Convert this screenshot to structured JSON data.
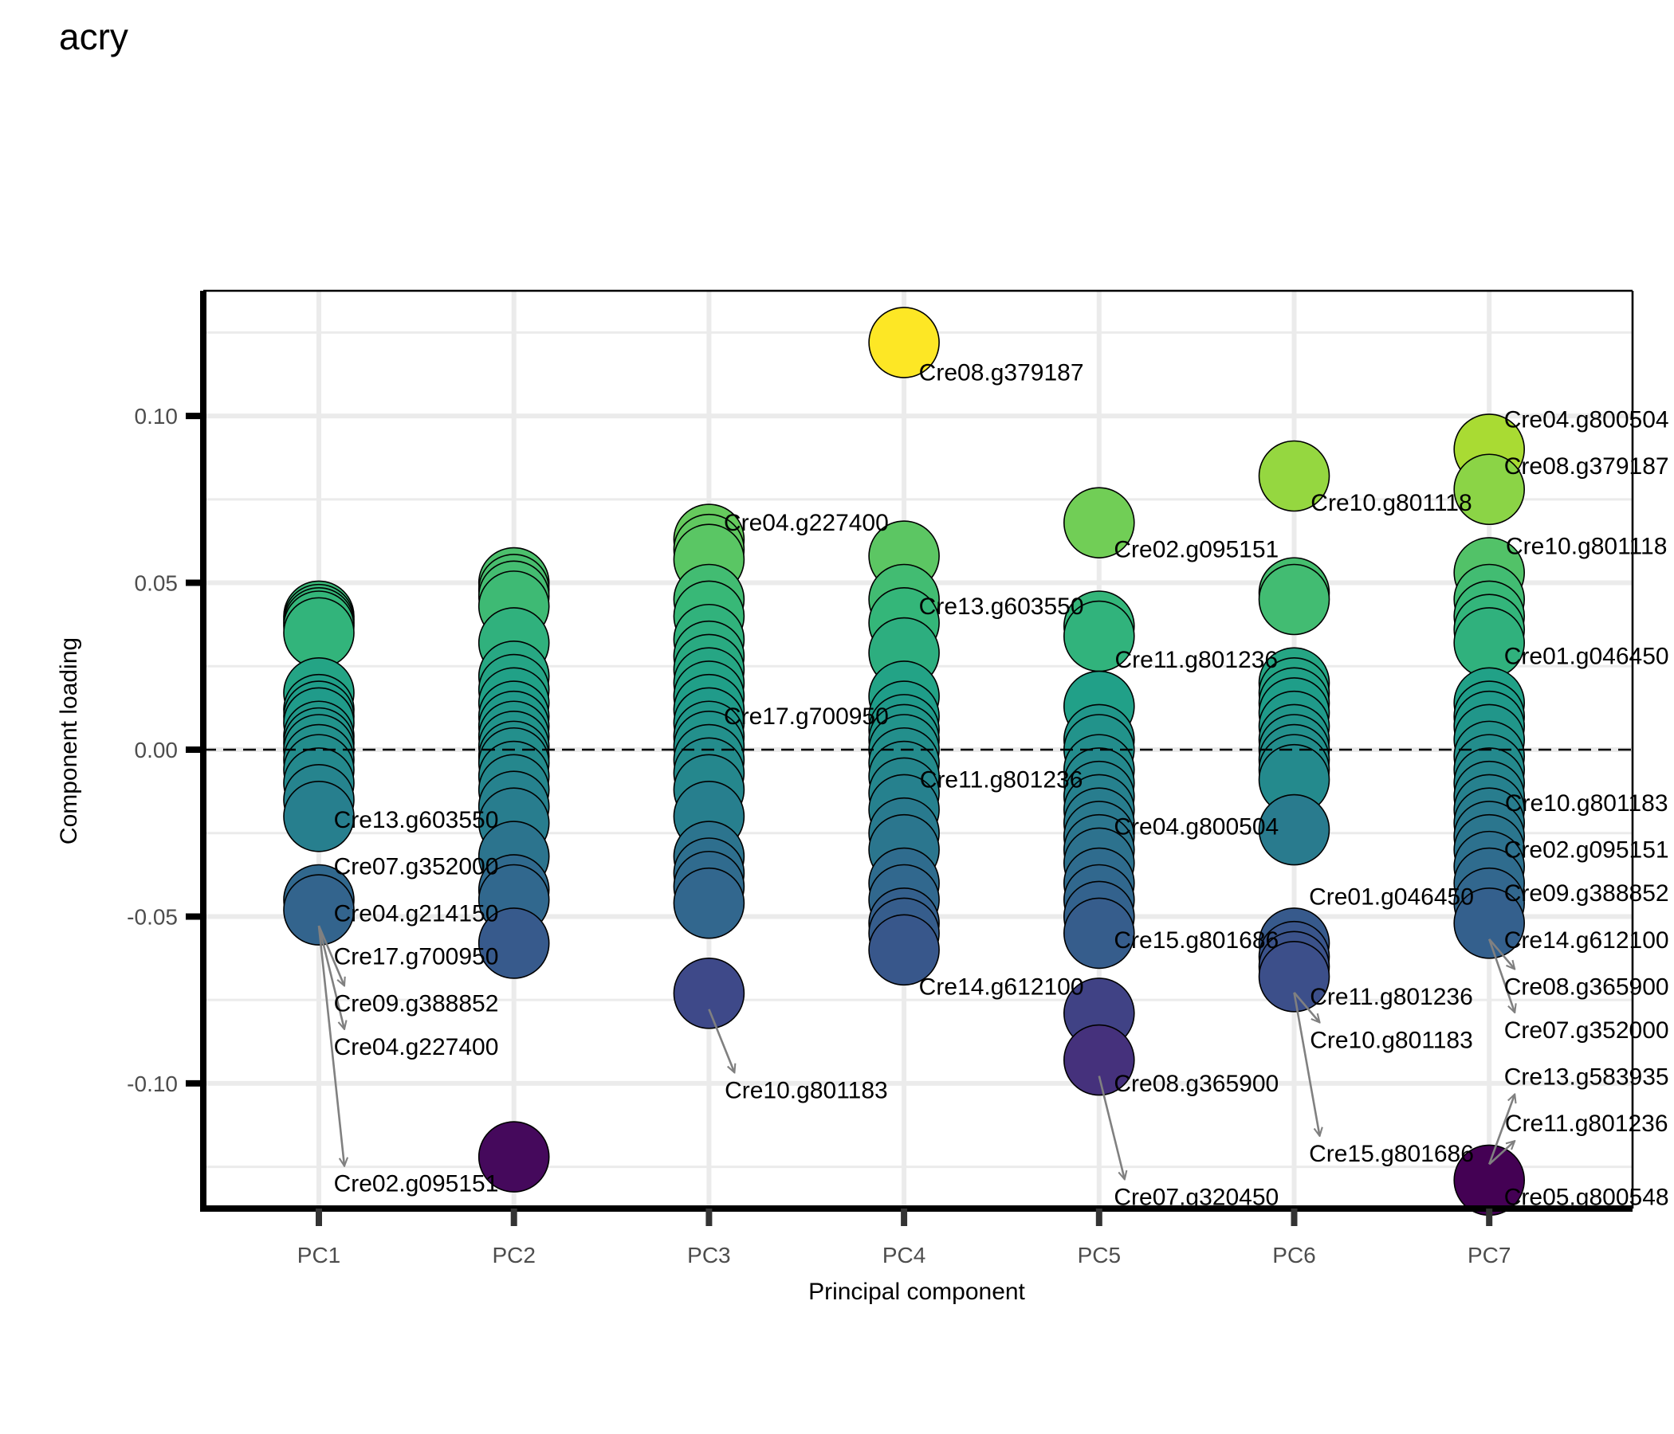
{
  "chart_data": {
    "type": "scatter",
    "title": "acry",
    "xlabel": "Principal component",
    "ylabel": "Component loading",
    "categories": [
      "PC1",
      "PC2",
      "PC3",
      "PC4",
      "PC5",
      "PC6",
      "PC7"
    ],
    "ylim": [
      -0.1375,
      0.1375
    ],
    "yticks": [
      0.1,
      0.05,
      0.0,
      -0.05,
      -0.1
    ],
    "ytick_labels": [
      "0.10",
      "0.05",
      "0.00",
      "-0.05",
      "-0.10"
    ],
    "reference_line": 0,
    "grid": true,
    "color_scale": "viridis",
    "point_fill_min": -0.128,
    "point_fill_max": 0.122,
    "points": {
      "PC1": [
        0.04,
        0.039,
        0.038,
        0.037,
        0.035,
        0.017,
        0.012,
        0.01,
        0.008,
        0.004,
        0.002,
        0.0,
        -0.003,
        -0.006,
        -0.01,
        -0.015,
        -0.02,
        -0.045,
        -0.048
      ],
      "PC2": [
        0.05,
        0.048,
        0.046,
        0.043,
        0.032,
        0.022,
        0.018,
        0.014,
        0.01,
        0.007,
        0.004,
        0.001,
        -0.002,
        -0.004,
        -0.008,
        -0.012,
        -0.017,
        -0.022,
        -0.032,
        -0.042,
        -0.045,
        -0.058,
        -0.122
      ],
      "PC3": [
        0.063,
        0.06,
        0.057,
        0.045,
        0.04,
        0.033,
        0.028,
        0.024,
        0.02,
        0.016,
        0.012,
        0.008,
        0.004,
        0.001,
        -0.003,
        -0.007,
        -0.012,
        -0.02,
        -0.032,
        -0.037,
        -0.041,
        -0.046,
        -0.073
      ],
      "PC4": [
        0.122,
        0.058,
        0.045,
        0.038,
        0.029,
        0.016,
        0.01,
        0.006,
        0.003,
        0.0,
        -0.004,
        -0.008,
        -0.013,
        -0.018,
        -0.025,
        -0.03,
        -0.04,
        -0.045,
        -0.052,
        -0.055,
        -0.06
      ],
      "PC5": [
        0.068,
        0.037,
        0.034,
        0.013,
        0.003,
        0.0,
        -0.006,
        -0.01,
        -0.014,
        -0.018,
        -0.022,
        -0.026,
        -0.03,
        -0.034,
        -0.04,
        -0.045,
        -0.05,
        -0.055,
        -0.079,
        -0.093
      ],
      "PC6": [
        0.082,
        0.047,
        0.045,
        0.02,
        0.017,
        0.014,
        0.011,
        0.007,
        0.003,
        0.0,
        -0.003,
        -0.006,
        -0.009,
        -0.024,
        -0.058,
        -0.062,
        -0.065,
        -0.068
      ],
      "PC7": [
        0.09,
        0.078,
        0.053,
        0.045,
        0.04,
        0.036,
        0.032,
        0.014,
        0.01,
        0.007,
        0.003,
        -0.002,
        -0.006,
        -0.01,
        -0.014,
        -0.018,
        -0.022,
        -0.026,
        -0.03,
        -0.035,
        -0.04,
        -0.046,
        -0.052,
        -0.129
      ]
    },
    "annotations": [
      {
        "pc": "PC1",
        "text": "Cre13.g603550",
        "y": -0.021
      },
      {
        "pc": "PC1",
        "text": "Cre07.g352000",
        "y": -0.035
      },
      {
        "pc": "PC1",
        "text": "Cre04.g214150",
        "y": -0.049
      },
      {
        "pc": "PC1",
        "text": "Cre17.g700950",
        "y": -0.062
      },
      {
        "pc": "PC1",
        "text": "Cre09.g388852",
        "y": -0.076
      },
      {
        "pc": "PC1",
        "text": "Cre04.g227400",
        "y": -0.089
      },
      {
        "pc": "PC1",
        "text": "Cre02.g095151",
        "y": -0.13
      },
      {
        "pc": "PC3",
        "text": "Cre04.g227400",
        "y": 0.068
      },
      {
        "pc": "PC3",
        "text": "Cre17.g700950",
        "y": 0.01
      },
      {
        "pc": "PC3",
        "text": "Cre10.g801183",
        "y": -0.102
      },
      {
        "pc": "PC4",
        "text": "Cre08.g379187",
        "y": 0.113
      },
      {
        "pc": "PC4",
        "text": "Cre13.g603550",
        "y": 0.043
      },
      {
        "pc": "PC4",
        "text": "Cre11.g801236",
        "y": -0.009
      },
      {
        "pc": "PC4",
        "text": "Cre14.g612100",
        "y": -0.071
      },
      {
        "pc": "PC5",
        "text": "Cre02.g095151",
        "y": 0.06
      },
      {
        "pc": "PC5",
        "text": "Cre11.g801236",
        "y": 0.027
      },
      {
        "pc": "PC5",
        "text": "Cre04.g800504",
        "y": -0.023
      },
      {
        "pc": "PC5",
        "text": "Cre15.g801686",
        "y": -0.057
      },
      {
        "pc": "PC5",
        "text": "Cre08.g365900",
        "y": -0.1
      },
      {
        "pc": "PC5",
        "text": "Cre07.g320450",
        "y": -0.134
      },
      {
        "pc": "PC6",
        "text": "Cre10.g801118",
        "y": 0.074
      },
      {
        "pc": "PC6",
        "text": "Cre01.g046450",
        "y": -0.044
      },
      {
        "pc": "PC6",
        "text": "Cre11.g801236",
        "y": -0.074
      },
      {
        "pc": "PC6",
        "text": "Cre10.g801183",
        "y": -0.087
      },
      {
        "pc": "PC6",
        "text": "Cre15.g801686",
        "y": -0.121
      },
      {
        "pc": "PC7",
        "text": "Cre04.g800504",
        "y": 0.099
      },
      {
        "pc": "PC7",
        "text": "Cre08.g379187",
        "y": 0.085
      },
      {
        "pc": "PC7",
        "text": "Cre10.g801118",
        "y": 0.061
      },
      {
        "pc": "PC7",
        "text": "Cre01.g046450",
        "y": 0.028
      },
      {
        "pc": "PC7",
        "text": "Cre10.g801183",
        "y": -0.016
      },
      {
        "pc": "PC7",
        "text": "Cre02.g095151",
        "y": -0.03
      },
      {
        "pc": "PC7",
        "text": "Cre09.g388852",
        "y": -0.043
      },
      {
        "pc": "PC7",
        "text": "Cre14.g612100",
        "y": -0.057
      },
      {
        "pc": "PC7",
        "text": "Cre08.g365900",
        "y": -0.071
      },
      {
        "pc": "PC7",
        "text": "Cre07.g352000",
        "y": -0.084
      },
      {
        "pc": "PC7",
        "text": "Cre13.g583935",
        "y": -0.098
      },
      {
        "pc": "PC7",
        "text": "Cre11.g801236",
        "y": -0.112
      },
      {
        "pc": "PC7",
        "text": "Cre05.g800548",
        "y": -0.134
      }
    ]
  }
}
